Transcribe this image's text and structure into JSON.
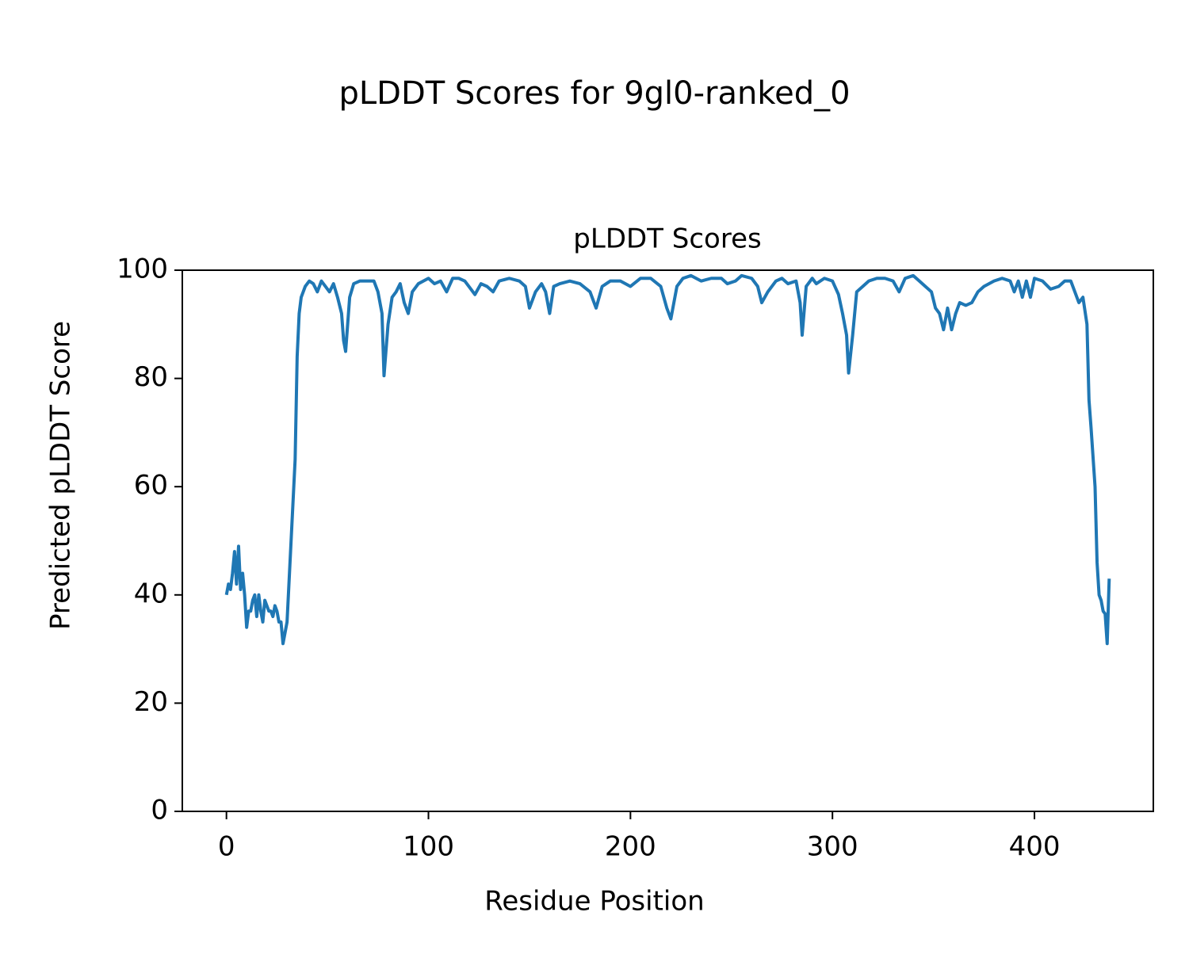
{
  "chart_data": {
    "type": "line",
    "suptitle": "pLDDT Scores for 9gl0-ranked_0",
    "title": "pLDDT Scores",
    "xlabel": "Residue Position",
    "ylabel": "Predicted pLDDT Score",
    "xlim": [
      -21.85,
      458.85
    ],
    "xticks": [
      0,
      100,
      200,
      300,
      400
    ],
    "ylim": [
      0,
      100
    ],
    "yticks": [
      0,
      20,
      40,
      60,
      80,
      100
    ],
    "grid": false,
    "x": [
      0,
      1,
      2,
      3,
      4,
      5,
      6,
      7,
      8,
      9,
      10,
      11,
      12,
      13,
      14,
      15,
      16,
      17,
      18,
      19,
      20,
      21,
      22,
      23,
      24,
      25,
      26,
      27,
      28,
      29,
      30,
      32,
      34,
      35,
      36,
      37,
      39,
      41,
      43,
      45,
      47,
      49,
      51,
      53,
      55,
      57,
      58,
      59,
      61,
      63,
      66,
      70,
      73,
      75,
      77,
      78,
      80,
      82,
      84,
      86,
      88,
      90,
      92,
      95,
      100,
      103,
      106,
      109,
      112,
      115,
      118,
      120,
      123,
      126,
      129,
      132,
      135,
      140,
      145,
      148,
      150,
      153,
      156,
      158,
      160,
      162,
      165,
      170,
      175,
      180,
      183,
      186,
      190,
      195,
      200,
      205,
      210,
      215,
      218,
      220,
      223,
      226,
      230,
      235,
      240,
      245,
      248,
      252,
      255,
      260,
      263,
      265,
      268,
      272,
      275,
      278,
      282,
      284,
      285,
      287,
      290,
      292,
      296,
      300,
      303,
      305,
      307,
      308,
      310,
      312,
      315,
      318,
      322,
      326,
      330,
      333,
      336,
      340,
      343,
      346,
      349,
      351,
      353,
      355,
      357,
      359,
      361,
      363,
      366,
      369,
      372,
      375,
      380,
      384,
      388,
      390,
      392,
      394,
      396,
      398,
      400,
      404,
      408,
      412,
      415,
      418,
      420,
      422,
      424,
      426,
      427,
      428,
      430,
      431,
      432,
      433,
      434,
      435,
      436,
      437
    ],
    "series": [
      {
        "name": "pLDDT",
        "color": "#1f77b4",
        "values": [
          40,
          42,
          41,
          44,
          48,
          42,
          49,
          41,
          44,
          40,
          34,
          37,
          37,
          39,
          40,
          36,
          40,
          37,
          35,
          39,
          38,
          37,
          37,
          36,
          38,
          37,
          35,
          35,
          31,
          33,
          35,
          50,
          65,
          84,
          92,
          95,
          97,
          98,
          97.5,
          96,
          98,
          97,
          96,
          97.5,
          95,
          92,
          87,
          85,
          95,
          97.5,
          98,
          98,
          98,
          96,
          92,
          80.5,
          90,
          95,
          96,
          97.5,
          94,
          92,
          96,
          97.5,
          98.5,
          97.5,
          98,
          96,
          98.5,
          98.5,
          98,
          97,
          95.5,
          97.5,
          97,
          96,
          98,
          98.5,
          98,
          97,
          93,
          96,
          97.5,
          96,
          92,
          97,
          97.5,
          98,
          97.5,
          96,
          93,
          97,
          98,
          98,
          97,
          98.5,
          98.5,
          97,
          93,
          91,
          97,
          98.5,
          99,
          98,
          98.5,
          98.5,
          97.5,
          98,
          99,
          98.5,
          97,
          94,
          96,
          98,
          98.5,
          97.5,
          98,
          94,
          88,
          97,
          98.5,
          97.5,
          98.5,
          98,
          95.5,
          92,
          88,
          81,
          88,
          96,
          97,
          98,
          98.5,
          98.5,
          98,
          96,
          98.5,
          99,
          98,
          97,
          96,
          93,
          92,
          89,
          93,
          89,
          92,
          94,
          93.5,
          94,
          96,
          97,
          98,
          98.5,
          98,
          96,
          98,
          95,
          98,
          95,
          98.5,
          98,
          96.5,
          97,
          98,
          98,
          96,
          94,
          95,
          90,
          76,
          71,
          60,
          46,
          40,
          39,
          37,
          36.5,
          31,
          43
        ]
      }
    ]
  }
}
